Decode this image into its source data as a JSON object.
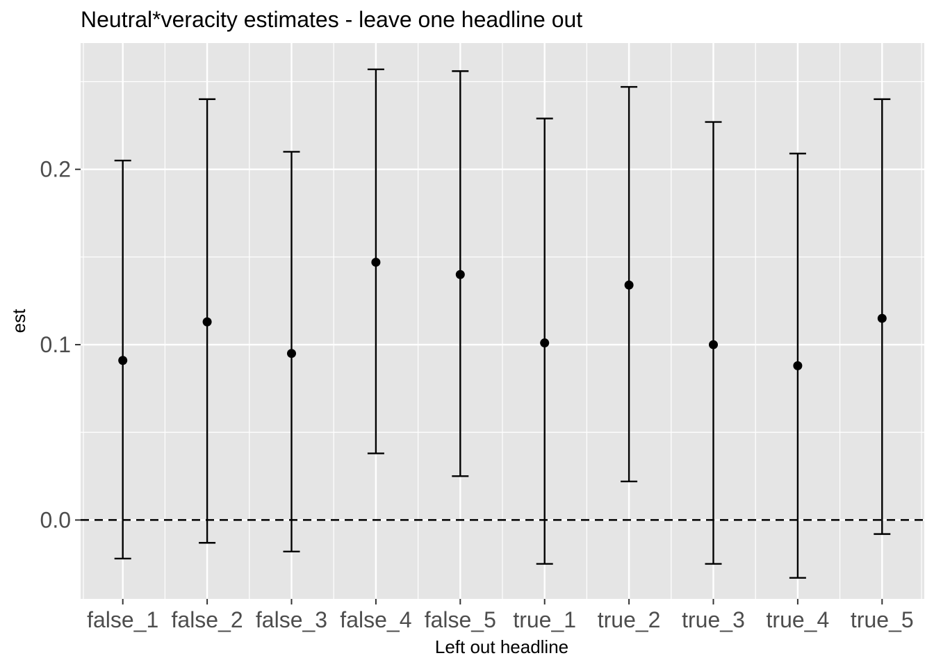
{
  "chart_data": {
    "type": "scatter",
    "title": "Neutral*veracity estimates - leave one headline out",
    "xlabel": "Left out headline",
    "ylabel": "est",
    "categories": [
      "false_1",
      "false_2",
      "false_3",
      "false_4",
      "false_5",
      "true_1",
      "true_2",
      "true_3",
      "true_4",
      "true_5"
    ],
    "series": [
      {
        "values": [
          0.091,
          0.113,
          0.095,
          0.147,
          0.14,
          0.101,
          0.134,
          0.1,
          0.088,
          0.115
        ],
        "lower": [
          -0.022,
          -0.013,
          -0.018,
          0.038,
          0.025,
          -0.025,
          0.022,
          -0.025,
          -0.033,
          -0.008
        ],
        "upper": [
          0.205,
          0.24,
          0.21,
          0.257,
          0.256,
          0.229,
          0.247,
          0.227,
          0.209,
          0.24
        ]
      }
    ],
    "yticks": [
      0.0,
      0.1,
      0.2
    ],
    "ytick_labels": [
      "0.0",
      "0.1",
      "0.2"
    ],
    "ylim": [
      -0.045,
      0.272
    ],
    "reference_line": {
      "y": 0.0,
      "style": "dashed"
    },
    "grid": true,
    "colors": {
      "panel": "#e5e5e5",
      "grid": "#ffffff",
      "mark": "#000000",
      "tick_text": "#4d4d4d"
    }
  }
}
